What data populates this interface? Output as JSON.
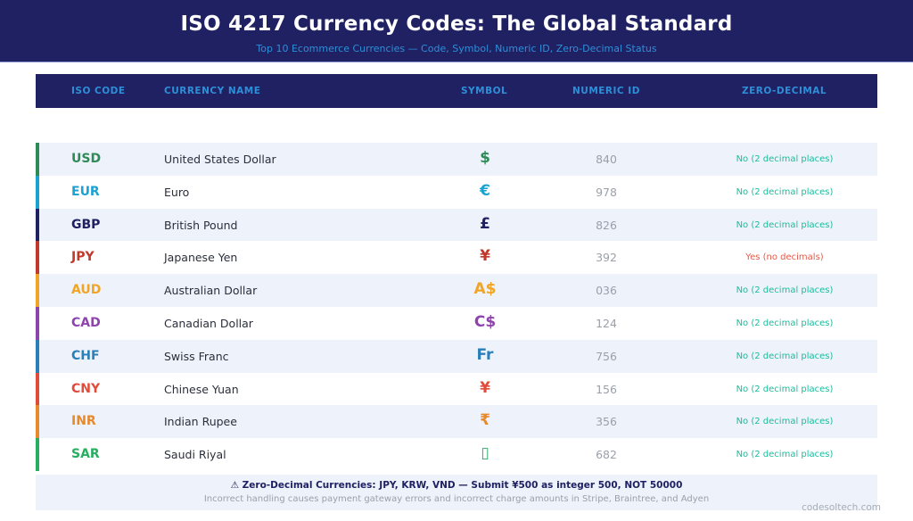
{
  "header": {
    "title": "ISO 4217 Currency Codes: The Global Standard",
    "subtitle": "Top 10 Ecommerce Currencies — Code, Symbol, Numeric ID, Zero-Decimal Status"
  },
  "table": {
    "columns": [
      "ISO CODE",
      "CURRENCY NAME",
      "SYMBOL",
      "NUMERIC ID",
      "ZERO-DECIMAL"
    ],
    "rows": [
      {
        "code": "USD",
        "name": "United States Dollar",
        "symbol": "$",
        "numeric": "840",
        "zero_decimal": "No (2 decimal places)",
        "color": "#2e8b57"
      },
      {
        "code": "EUR",
        "name": "Euro",
        "symbol": "€",
        "numeric": "978",
        "zero_decimal": "No (2 decimal places)",
        "color": "#1aa3d1"
      },
      {
        "code": "GBP",
        "name": "British Pound",
        "symbol": "£",
        "numeric": "826",
        "zero_decimal": "No (2 decimal places)",
        "color": "#1f2163"
      },
      {
        "code": "JPY",
        "name": "Japanese Yen",
        "symbol": "¥",
        "numeric": "392",
        "zero_decimal": "Yes (no decimals)",
        "color": "#c0392b"
      },
      {
        "code": "AUD",
        "name": "Australian Dollar",
        "symbol": "A$",
        "numeric": "036",
        "zero_decimal": "No (2 decimal places)",
        "color": "#f0a526"
      },
      {
        "code": "CAD",
        "name": "Canadian Dollar",
        "symbol": "C$",
        "numeric": "124",
        "zero_decimal": "No (2 decimal places)",
        "color": "#8e44ad"
      },
      {
        "code": "CHF",
        "name": "Swiss Franc",
        "symbol": "Fr",
        "numeric": "756",
        "zero_decimal": "No (2 decimal places)",
        "color": "#2a7fb8"
      },
      {
        "code": "CNY",
        "name": "Chinese Yuan",
        "symbol": "¥",
        "numeric": "156",
        "zero_decimal": "No (2 decimal places)",
        "color": "#e04b3a"
      },
      {
        "code": "INR",
        "name": "Indian Rupee",
        "symbol": "₹",
        "numeric": "356",
        "zero_decimal": "No (2 decimal places)",
        "color": "#e8892b"
      },
      {
        "code": "SAR",
        "name": "Saudi Riyal",
        "symbol": "▯",
        "numeric": "682",
        "zero_decimal": "No (2 decimal places)",
        "color": "#27ae60"
      }
    ]
  },
  "colors": {
    "no_decimal": "#1abc9c",
    "yes_decimal": "#e05a4a"
  },
  "note": {
    "warning": "⚠ Zero-Decimal Currencies: JPY, KRW, VND — Submit ¥500 as integer 500, NOT 50000",
    "detail": "Incorrect handling causes payment gateway errors and incorrect charge amounts in Stripe, Braintree, and Adyen"
  },
  "footer": {
    "site": "codesoltech.com"
  }
}
